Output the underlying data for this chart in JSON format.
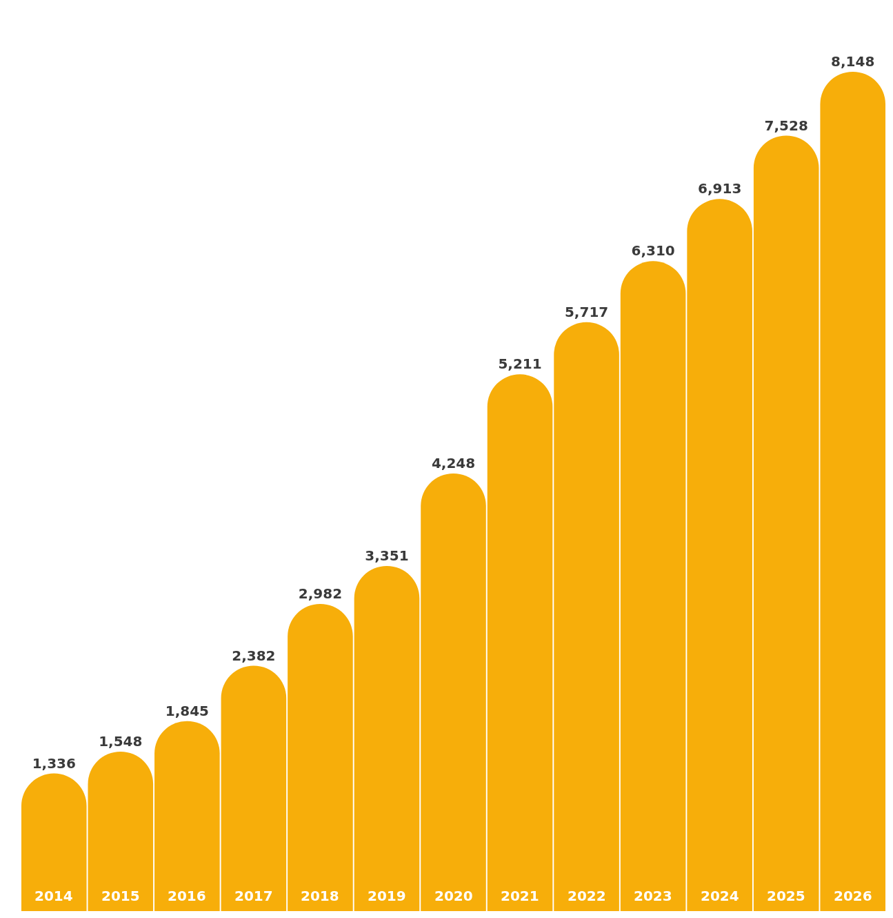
{
  "chart_data": {
    "type": "bar",
    "categories": [
      "2014",
      "2015",
      "2016",
      "2017",
      "2018",
      "2019",
      "2020",
      "2021",
      "2022",
      "2023",
      "2024",
      "2025",
      "2026"
    ],
    "values": [
      1336,
      1548,
      1845,
      2382,
      2982,
      3351,
      4248,
      5211,
      5717,
      6310,
      6913,
      7528,
      8148
    ],
    "value_labels": [
      "1,336",
      "1,548",
      "1,845",
      "2,382",
      "2,982",
      "3,351",
      "4,248",
      "5,211",
      "5,717",
      "6,310",
      "6,913",
      "7,528",
      "8,148"
    ],
    "color": "#f7ae0a"
  }
}
